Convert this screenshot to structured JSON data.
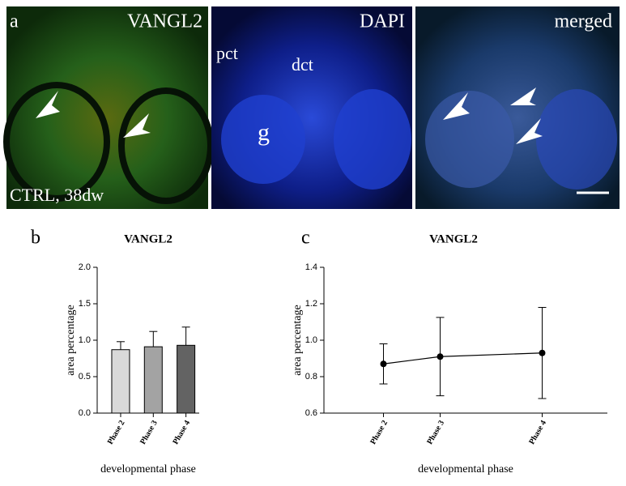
{
  "panel_a": {
    "label": "a",
    "images": [
      {
        "title": "VANGL2",
        "annotations": [
          "CTRL, 38dw"
        ]
      },
      {
        "title": "DAPI",
        "annotations": [
          "pct",
          "dct",
          "g"
        ]
      },
      {
        "title": "merged",
        "annotations": []
      }
    ]
  },
  "chart_data": [
    {
      "type": "bar",
      "panel_label": "b",
      "title": "VANGL2",
      "categories": [
        "Phase 2",
        "Phase 3",
        "Phase 4"
      ],
      "values": [
        0.87,
        0.91,
        0.93
      ],
      "errors": [
        0.11,
        0.21,
        0.25
      ],
      "colors": [
        "#d9d9d9",
        "#a3a3a3",
        "#636363"
      ],
      "xlabel": "developmental phase",
      "ylabel": "area percentage",
      "ylim": [
        0,
        2
      ],
      "yticks": [
        {
          "value": 0,
          "label": "0.0"
        },
        0.5,
        {
          "value": 1,
          "label": "1.0"
        },
        1.5,
        {
          "value": 2,
          "label": "2.0"
        }
      ]
    },
    {
      "type": "line",
      "panel_label": "c",
      "title": "VANGL2",
      "categories": [
        "Phase 2",
        "Phase 3",
        "Phase 4"
      ],
      "values": [
        0.87,
        0.91,
        0.93
      ],
      "errors": [
        0.11,
        0.215,
        0.25
      ],
      "color": "#000000",
      "xlabel": "developmental phase",
      "ylabel": "area percentage",
      "ylim": [
        0.6,
        1.4
      ],
      "yticks": [
        0.6,
        0.8,
        {
          "value": 1,
          "label": "1.0"
        },
        1.2,
        1.4
      ]
    }
  ]
}
